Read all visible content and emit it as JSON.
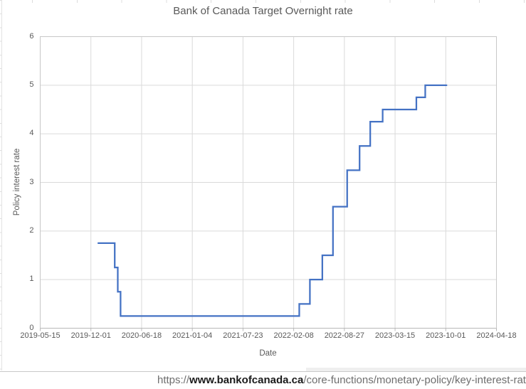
{
  "source_bar": {
    "url_prefix": "https://",
    "url_domain": "www.bankofcanada.ca",
    "url_path": "/core-functions/monetary-policy/key-interest-rate/"
  },
  "chart_data": {
    "type": "line",
    "subtype": "step",
    "title": "Bank of Canada Target Overnight rate",
    "xlabel": "Date",
    "ylabel": "Policy interest rate",
    "x_start": "2019-05-15",
    "x_end": "2024-04-18",
    "x_span_days": 1800,
    "x_tick_labels": [
      "2019-05-15",
      "2019-12-01",
      "2020-06-18",
      "2021-01-04",
      "2021-07-23",
      "2022-02-08",
      "2022-08-27",
      "2023-03-15",
      "2023-10-01",
      "2024-04-18"
    ],
    "y_ticks": [
      0,
      1,
      2,
      3,
      4,
      5,
      6
    ],
    "ylim": [
      0,
      6
    ],
    "grid": true,
    "legend": "none",
    "series": [
      {
        "name": "Policy interest rate",
        "points": [
          {
            "date": "2019-12-30",
            "rate": 1.75
          },
          {
            "date": "2020-03-04",
            "rate": 1.25
          },
          {
            "date": "2020-03-16",
            "rate": 0.75
          },
          {
            "date": "2020-03-27",
            "rate": 0.25
          },
          {
            "date": "2022-03-02",
            "rate": 0.5
          },
          {
            "date": "2022-04-13",
            "rate": 1.0
          },
          {
            "date": "2022-06-01",
            "rate": 1.5
          },
          {
            "date": "2022-07-13",
            "rate": 2.5
          },
          {
            "date": "2022-09-07",
            "rate": 3.25
          },
          {
            "date": "2022-10-26",
            "rate": 3.75
          },
          {
            "date": "2022-12-07",
            "rate": 4.25
          },
          {
            "date": "2023-01-25",
            "rate": 4.5
          },
          {
            "date": "2023-06-07",
            "rate": 4.75
          },
          {
            "date": "2023-07-12",
            "rate": 5.0
          }
        ],
        "end_date": "2023-10-04"
      }
    ],
    "colors": {
      "line": "#4472C4",
      "gridline": "#dadada",
      "plot_border": "#c8c8c8",
      "axis": "#b8b8b8",
      "text": "#595959"
    }
  }
}
